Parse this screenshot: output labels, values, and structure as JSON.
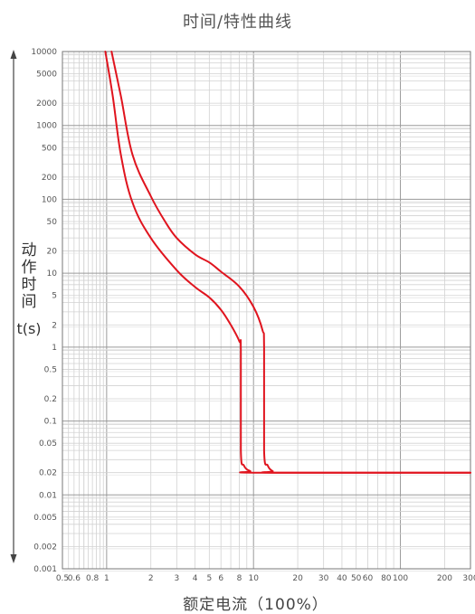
{
  "chart_data": {
    "type": "line",
    "title": "时间/特性曲线",
    "ylabel_cjk": "动作时间",
    "ylabel_unit": "t(s)",
    "xlabel": "额定电流（100%）",
    "xscale": "log",
    "yscale": "log",
    "xlim": [
      0.5,
      300
    ],
    "ylim": [
      0.001,
      10000
    ],
    "grid": true,
    "xtick_labels": [
      {
        "label": "0.5",
        "value": 0.5
      },
      {
        "label": "0.6",
        "value": 0.6
      },
      {
        "label": "0.8",
        "value": 0.8
      },
      {
        "label": "1",
        "value": 1
      },
      {
        "label": "2",
        "value": 2
      },
      {
        "label": "3",
        "value": 3
      },
      {
        "label": "4",
        "value": 4
      },
      {
        "label": "5",
        "value": 5
      },
      {
        "label": "6",
        "value": 6
      },
      {
        "label": "8",
        "value": 8
      },
      {
        "label": "10",
        "value": 10
      },
      {
        "label": "20",
        "value": 20
      },
      {
        "label": "30",
        "value": 30
      },
      {
        "label": "40",
        "value": 40
      },
      {
        "label": "50",
        "value": 50
      },
      {
        "label": "60",
        "value": 60
      },
      {
        "label": "80",
        "value": 80
      },
      {
        "label": "100",
        "value": 100
      },
      {
        "label": "200",
        "value": 200
      },
      {
        "label": "300",
        "value": 300
      }
    ],
    "ytick_labels": [
      {
        "label": "10000",
        "value": 10000
      },
      {
        "label": "5000",
        "value": 5000
      },
      {
        "label": "2000",
        "value": 2000
      },
      {
        "label": "1000",
        "value": 1000
      },
      {
        "label": "500",
        "value": 500
      },
      {
        "label": "200",
        "value": 200
      },
      {
        "label": "100",
        "value": 100
      },
      {
        "label": "50",
        "value": 50
      },
      {
        "label": "20",
        "value": 20
      },
      {
        "label": "10",
        "value": 10
      },
      {
        "label": "5",
        "value": 5
      },
      {
        "label": "2",
        "value": 2
      },
      {
        "label": "1",
        "value": 1
      },
      {
        "label": "0.5",
        "value": 0.5
      },
      {
        "label": "0.2",
        "value": 0.2
      },
      {
        "label": "0.1",
        "value": 0.1
      },
      {
        "label": "0.05",
        "value": 0.05
      },
      {
        "label": "0.02",
        "value": 0.02
      },
      {
        "label": "0.01",
        "value": 0.01
      },
      {
        "label": "0.005",
        "value": 0.005
      },
      {
        "label": "0.002",
        "value": 0.002
      },
      {
        "label": "0.001",
        "value": 0.001
      }
    ],
    "series": [
      {
        "color": "#e0141e",
        "points": [
          [
            0.98,
            10000
          ],
          [
            1.1,
            2500
          ],
          [
            1.25,
            400
          ],
          [
            1.5,
            90
          ],
          [
            2,
            30
          ],
          [
            3,
            11
          ],
          [
            4,
            6.5
          ],
          [
            5,
            4.7
          ],
          [
            6,
            3.2
          ],
          [
            7,
            2
          ],
          [
            8,
            1.2
          ],
          [
            8.2,
            0.9
          ],
          [
            8.2,
            0.04
          ],
          [
            8.6,
            0.025
          ],
          [
            9.5,
            0.021
          ],
          [
            11,
            0.02
          ],
          [
            300,
            0.02
          ]
        ]
      },
      {
        "color": "#e0141e",
        "points": [
          [
            1.08,
            10000
          ],
          [
            1.25,
            2500
          ],
          [
            1.5,
            400
          ],
          [
            2,
            110
          ],
          [
            2.5,
            50
          ],
          [
            3,
            30
          ],
          [
            4,
            18
          ],
          [
            5,
            14
          ],
          [
            6,
            10.5
          ],
          [
            8,
            6.6
          ],
          [
            10,
            3.5
          ],
          [
            11.5,
            1.7
          ],
          [
            11.8,
            1
          ],
          [
            11.8,
            0.04
          ],
          [
            12.5,
            0.025
          ],
          [
            13.5,
            0.021
          ],
          [
            15,
            0.02
          ],
          [
            300,
            0.02
          ]
        ]
      }
    ]
  }
}
